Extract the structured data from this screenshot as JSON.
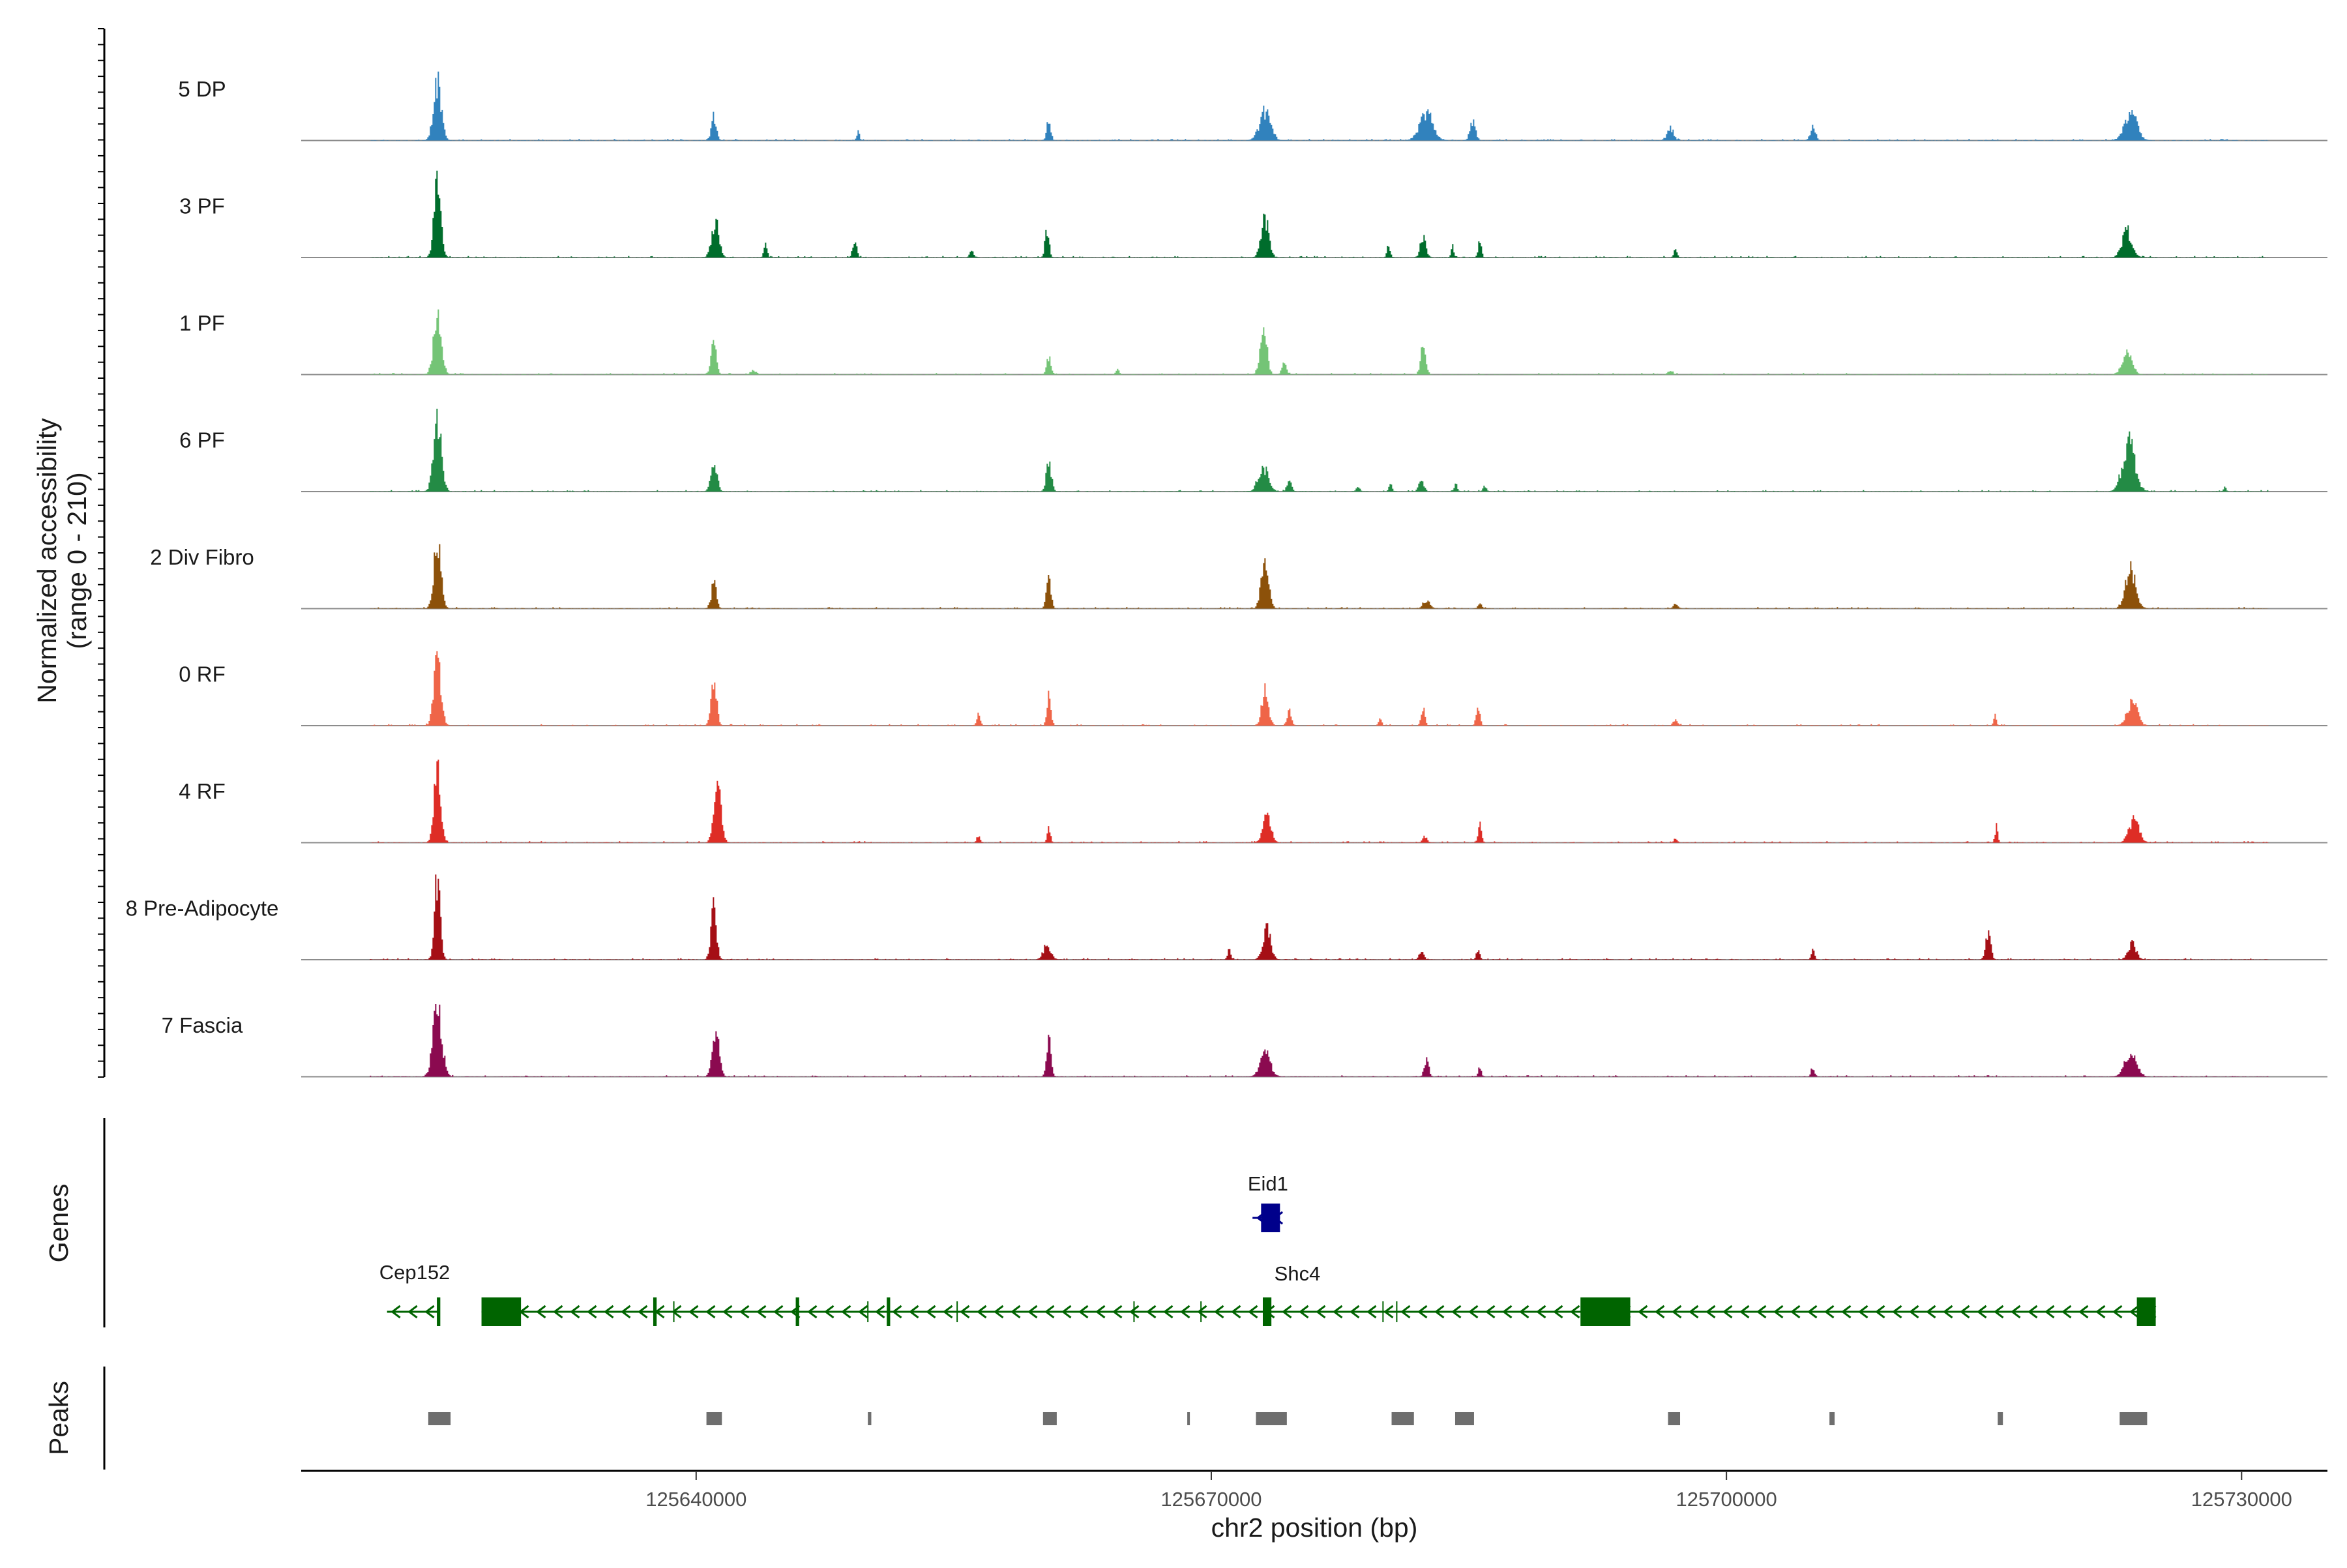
{
  "chart_data": {
    "type": "genome_browser_coverage",
    "region": {
      "chromosome": "chr2",
      "start": 125617000,
      "end": 125735000
    },
    "coverage_panel": {
      "ylabel_line1": "Normalized accessibility",
      "ylabel_line2": "(range 0 - 210)",
      "ylim": [
        0,
        210
      ],
      "tracks": [
        {
          "name": "5 DP",
          "color": "#3182bd",
          "peaks": [
            [
              125624900,
              150,
              700
            ],
            [
              125641000,
              55,
              450
            ],
            [
              125649400,
              25,
              250
            ],
            [
              125660500,
              55,
              350
            ],
            [
              125673100,
              70,
              1000
            ],
            [
              125682500,
              65,
              1200
            ],
            [
              125685200,
              45,
              500
            ],
            [
              125696700,
              30,
              600
            ],
            [
              125705000,
              35,
              450
            ],
            [
              125723500,
              70,
              1100
            ]
          ]
        },
        {
          "name": "3 PF",
          "color": "#006d2c",
          "peaks": [
            [
              125624900,
              190,
              600
            ],
            [
              125641100,
              90,
              650
            ],
            [
              125644000,
              35,
              300
            ],
            [
              125649200,
              45,
              350
            ],
            [
              125656000,
              20,
              300
            ],
            [
              125660400,
              75,
              350
            ],
            [
              125673100,
              95,
              700
            ],
            [
              125680300,
              30,
              300
            ],
            [
              125682300,
              50,
              500
            ],
            [
              125684000,
              28,
              250
            ],
            [
              125685600,
              40,
              300
            ],
            [
              125697000,
              18,
              300
            ],
            [
              125723300,
              65,
              900
            ]
          ]
        },
        {
          "name": "1 PF",
          "color": "#74c476",
          "peaks": [
            [
              125624900,
              145,
              700
            ],
            [
              125641000,
              90,
              450
            ],
            [
              125643300,
              10,
              500
            ],
            [
              125660500,
              40,
              400
            ],
            [
              125664500,
              12,
              300
            ],
            [
              125673000,
              120,
              600
            ],
            [
              125674200,
              30,
              400
            ],
            [
              125682300,
              65,
              450
            ],
            [
              125696700,
              10,
              400
            ],
            [
              125723300,
              50,
              900
            ]
          ]
        },
        {
          "name": "6 PF",
          "color": "#238b45",
          "peaks": [
            [
              125624900,
              180,
              700
            ],
            [
              125641000,
              70,
              550
            ],
            [
              125660500,
              80,
              450
            ],
            [
              125673000,
              60,
              900
            ],
            [
              125674500,
              25,
              400
            ],
            [
              125678500,
              12,
              300
            ],
            [
              125680400,
              15,
              300
            ],
            [
              125682200,
              30,
              450
            ],
            [
              125684200,
              18,
              300
            ],
            [
              125685900,
              14,
              300
            ],
            [
              125723400,
              125,
              1100
            ],
            [
              125729000,
              12,
              200
            ]
          ]
        },
        {
          "name": "2 Div Fibro",
          "color": "#8c510a",
          "peaks": [
            [
              125624900,
              160,
              650
            ],
            [
              125641000,
              65,
              450
            ],
            [
              125660500,
              72,
              420
            ],
            [
              125673100,
              135,
              650
            ],
            [
              125682500,
              20,
              600
            ],
            [
              125685600,
              15,
              300
            ],
            [
              125697000,
              12,
              400
            ],
            [
              125723500,
              95,
              900
            ]
          ]
        },
        {
          "name": "0 RF",
          "color": "#ef6548",
          "peaks": [
            [
              125624900,
              170,
              650
            ],
            [
              125641000,
              120,
              500
            ],
            [
              125656400,
              28,
              300
            ],
            [
              125660500,
              70,
              350
            ],
            [
              125673100,
              90,
              600
            ],
            [
              125674500,
              35,
              400
            ],
            [
              125679800,
              25,
              250
            ],
            [
              125682300,
              40,
              350
            ],
            [
              125685500,
              40,
              350
            ],
            [
              125697000,
              15,
              400
            ],
            [
              125715600,
              25,
              250
            ],
            [
              125723600,
              60,
              900
            ]
          ]
        },
        {
          "name": "4 RF",
          "color": "#de2d26",
          "peaks": [
            [
              125624900,
              185,
              600
            ],
            [
              125641200,
              140,
              650
            ],
            [
              125656400,
              15,
              300
            ],
            [
              125660500,
              35,
              300
            ],
            [
              125673200,
              70,
              700
            ],
            [
              125682400,
              15,
              400
            ],
            [
              125685600,
              55,
              300
            ],
            [
              125697000,
              12,
              300
            ],
            [
              125715700,
              40,
              250
            ],
            [
              125723700,
              55,
              900
            ]
          ]
        },
        {
          "name": "8 Pre-Adipocyte",
          "color": "#a50f15",
          "peaks": [
            [
              125624900,
              210,
              500
            ],
            [
              125641000,
              125,
              500
            ],
            [
              125660400,
              35,
              700
            ],
            [
              125671000,
              25,
              300
            ],
            [
              125673200,
              75,
              700
            ],
            [
              125682200,
              22,
              400
            ],
            [
              125685500,
              25,
              300
            ],
            [
              125705000,
              22,
              300
            ],
            [
              125715200,
              70,
              450
            ],
            [
              125723600,
              40,
              700
            ]
          ]
        },
        {
          "name": "7 Fascia",
          "color": "#8b0a50",
          "peaks": [
            [
              125624900,
              170,
              800
            ],
            [
              125641100,
              125,
              600
            ],
            [
              125660500,
              90,
              400
            ],
            [
              125673100,
              60,
              900
            ],
            [
              125682500,
              45,
              400
            ],
            [
              125685600,
              20,
              300
            ],
            [
              125705000,
              25,
              300
            ],
            [
              125723500,
              60,
              1000
            ]
          ]
        }
      ]
    },
    "genes_panel": {
      "ylabel": "Genes",
      "genes": [
        {
          "name": "Eid1",
          "strand": "-",
          "start": 125672400,
          "end": 125674000,
          "color": "#00008b",
          "exons": [
            [
              125672900,
              125674000
            ]
          ]
        },
        {
          "name": "Cep152",
          "strand": "-",
          "start": 125622000,
          "end": 125625000,
          "color": "#006400",
          "exons": [
            [
              125624900,
              125625100
            ]
          ]
        },
        {
          "name": "Shc4",
          "strand": "-",
          "start": 125627500,
          "end": 125725000,
          "color": "#006400",
          "exons": [
            [
              125627500,
              125629800
            ],
            [
              125637500,
              125637700
            ],
            [
              125645800,
              125646000
            ],
            [
              125651100,
              125651300
            ],
            [
              125673000,
              125673500
            ],
            [
              125691500,
              125694400
            ],
            [
              125723900,
              125725000
            ]
          ]
        }
      ]
    },
    "peaks_panel": {
      "ylabel": "Peaks",
      "regions": [
        [
          125624400,
          125625700
        ],
        [
          125640600,
          125641500
        ],
        [
          125650000,
          125650200
        ],
        [
          125660200,
          125661000
        ],
        [
          125668600,
          125668700
        ],
        [
          125672600,
          125674400
        ],
        [
          125680500,
          125681800
        ],
        [
          125684200,
          125685300
        ],
        [
          125696600,
          125697300
        ],
        [
          125706000,
          125706300
        ],
        [
          125715800,
          125716100
        ],
        [
          125722900,
          125724500
        ]
      ]
    },
    "x_axis": {
      "xlabel": "chr2 position (bp)",
      "ticks": [
        125640000,
        125670000,
        125700000,
        125730000
      ],
      "tick_labels": [
        "125640000",
        "125670000",
        "125700000",
        "125730000"
      ]
    }
  }
}
